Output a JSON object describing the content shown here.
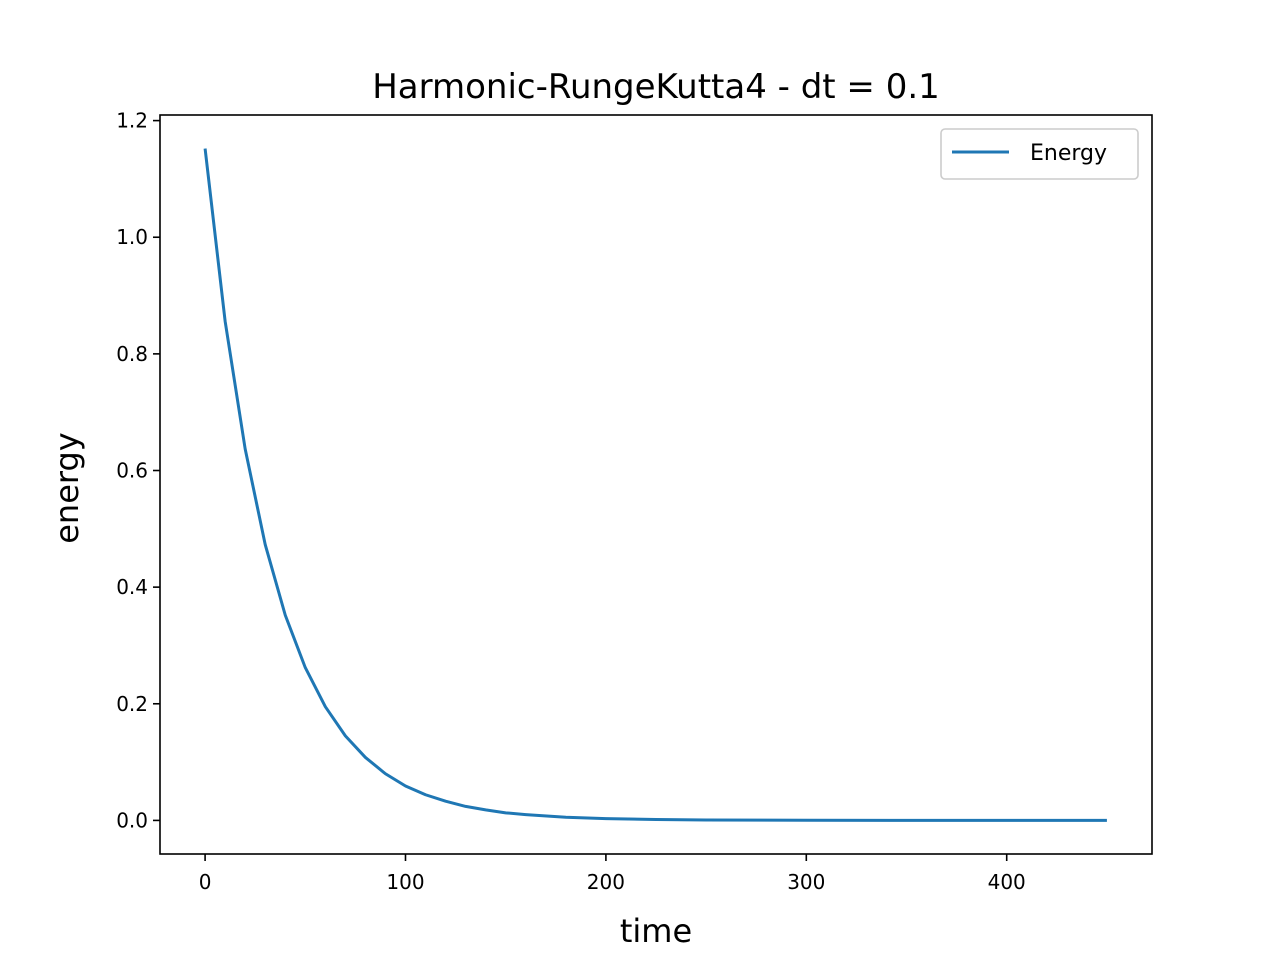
{
  "chart_data": {
    "type": "line",
    "title": "Harmonic-RungeKutta4 - dt = 0.1",
    "xlabel": "time",
    "ylabel": "energy",
    "xlim": [
      -22.5,
      472.5
    ],
    "ylim": [
      -0.0576,
      1.2096
    ],
    "xticks": [
      0,
      100,
      200,
      300,
      400
    ],
    "xtick_labels": [
      "0",
      "100",
      "200",
      "300",
      "400"
    ],
    "yticks": [
      0.0,
      0.2,
      0.4,
      0.6,
      0.8,
      1.0,
      1.2
    ],
    "ytick_labels": [
      "0.0",
      "0.2",
      "0.4",
      "0.6",
      "0.8",
      "1.0",
      "1.2"
    ],
    "grid": false,
    "legend": {
      "placement": "top-right",
      "entries": [
        "Energy"
      ]
    },
    "series": [
      {
        "name": "Energy",
        "color": "#1f77b4",
        "x": [
          0,
          10,
          20,
          30,
          40,
          50,
          60,
          70,
          80,
          90,
          100,
          110,
          120,
          130,
          140,
          150,
          160,
          180,
          200,
          225,
          250,
          300,
          350,
          400,
          450
        ],
        "y": [
          1.152,
          0.856,
          0.637,
          0.473,
          0.352,
          0.262,
          0.195,
          0.145,
          0.108,
          0.08,
          0.059,
          0.044,
          0.033,
          0.024,
          0.018,
          0.013,
          0.01,
          0.0055,
          0.003,
          0.0015,
          0.0007,
          0.0002,
          0.0,
          0.0,
          0.0
        ]
      }
    ]
  }
}
